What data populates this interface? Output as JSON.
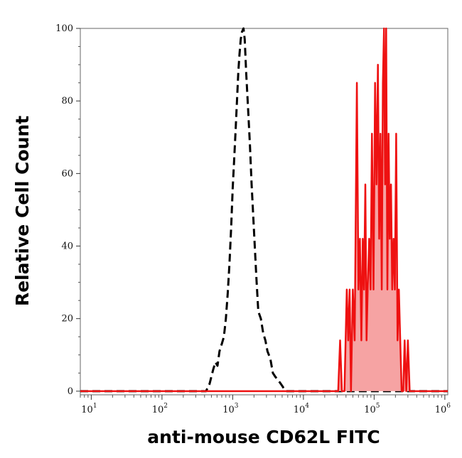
{
  "chart_data": {
    "type": "histogram-overlay",
    "xlabel": "anti-mouse CD62L FITC",
    "ylabel": "Relative Cell Count",
    "x_scale": "log",
    "xlim": [
      7,
      1100000
    ],
    "ylim": [
      -1,
      100
    ],
    "y_ticks": [
      {
        "value": 0,
        "label": "0"
      },
      {
        "value": 20,
        "label": "20"
      },
      {
        "value": 40,
        "label": "40"
      },
      {
        "value": 60,
        "label": "60"
      },
      {
        "value": 80,
        "label": "80"
      },
      {
        "value": 100,
        "label": "100"
      }
    ],
    "x_ticks": [
      {
        "value": 10,
        "base": "10",
        "exp": "1"
      },
      {
        "value": 100,
        "base": "10",
        "exp": "2"
      },
      {
        "value": 1000,
        "base": "10",
        "exp": "3"
      },
      {
        "value": 10000,
        "base": "10",
        "exp": "4"
      },
      {
        "value": 100000,
        "base": "10",
        "exp": "5"
      },
      {
        "value": 1000000,
        "base": "10",
        "exp": "6"
      }
    ],
    "grid": false,
    "legend": "none",
    "series": [
      {
        "style": "dashed",
        "color": "#000000",
        "fill": false,
        "points": [
          [
            7,
            0
          ],
          [
            420,
            0
          ],
          [
            470,
            2
          ],
          [
            530,
            6
          ],
          [
            570,
            8
          ],
          [
            610,
            7
          ],
          [
            650,
            11
          ],
          [
            700,
            13
          ],
          [
            750,
            15
          ],
          [
            800,
            20
          ],
          [
            850,
            27
          ],
          [
            900,
            35
          ],
          [
            950,
            45
          ],
          [
            1000,
            56
          ],
          [
            1050,
            64
          ],
          [
            1100,
            72
          ],
          [
            1150,
            80
          ],
          [
            1200,
            88
          ],
          [
            1250,
            93
          ],
          [
            1300,
            97
          ],
          [
            1350,
            99
          ],
          [
            1420,
            100
          ],
          [
            1480,
            97
          ],
          [
            1550,
            88
          ],
          [
            1650,
            78
          ],
          [
            1750,
            68
          ],
          [
            1850,
            57
          ],
          [
            2000,
            44
          ],
          [
            2150,
            32
          ],
          [
            2300,
            22
          ],
          [
            2500,
            20
          ],
          [
            2700,
            16
          ],
          [
            2900,
            14
          ],
          [
            3100,
            11
          ],
          [
            3400,
            9
          ],
          [
            3700,
            5
          ],
          [
            4000,
            4
          ],
          [
            4400,
            3
          ],
          [
            4800,
            2
          ],
          [
            5200,
            1
          ],
          [
            5700,
            0
          ],
          [
            1100000,
            0
          ]
        ]
      },
      {
        "style": "solid",
        "color": "#ee1111",
        "fill": true,
        "fill_color": "#f6a3a3",
        "points": [
          [
            7,
            0
          ],
          [
            31000,
            0
          ],
          [
            33000,
            14
          ],
          [
            35000,
            0
          ],
          [
            38000,
            0
          ],
          [
            41000,
            28
          ],
          [
            43000,
            14
          ],
          [
            45000,
            28
          ],
          [
            47000,
            0
          ],
          [
            50000,
            28
          ],
          [
            53000,
            14
          ],
          [
            57000,
            85
          ],
          [
            60000,
            28
          ],
          [
            63000,
            42
          ],
          [
            66000,
            14
          ],
          [
            69000,
            42
          ],
          [
            72000,
            28
          ],
          [
            75000,
            57
          ],
          [
            78000,
            14
          ],
          [
            81000,
            28
          ],
          [
            85000,
            42
          ],
          [
            89000,
            28
          ],
          [
            93000,
            71
          ],
          [
            98000,
            28
          ],
          [
            103000,
            85
          ],
          [
            108000,
            57
          ],
          [
            113000,
            90
          ],
          [
            118000,
            42
          ],
          [
            123000,
            71
          ],
          [
            128000,
            28
          ],
          [
            133000,
            85
          ],
          [
            138000,
            100
          ],
          [
            143000,
            57
          ],
          [
            148000,
            100
          ],
          [
            154000,
            28
          ],
          [
            160000,
            71
          ],
          [
            166000,
            42
          ],
          [
            173000,
            57
          ],
          [
            180000,
            28
          ],
          [
            188000,
            42
          ],
          [
            196000,
            28
          ],
          [
            205000,
            71
          ],
          [
            214000,
            14
          ],
          [
            224000,
            28
          ],
          [
            234000,
            14
          ],
          [
            245000,
            0
          ],
          [
            258000,
            0
          ],
          [
            270000,
            14
          ],
          [
            285000,
            0
          ],
          [
            300000,
            14
          ],
          [
            318000,
            0
          ],
          [
            1100000,
            0
          ]
        ]
      }
    ]
  }
}
